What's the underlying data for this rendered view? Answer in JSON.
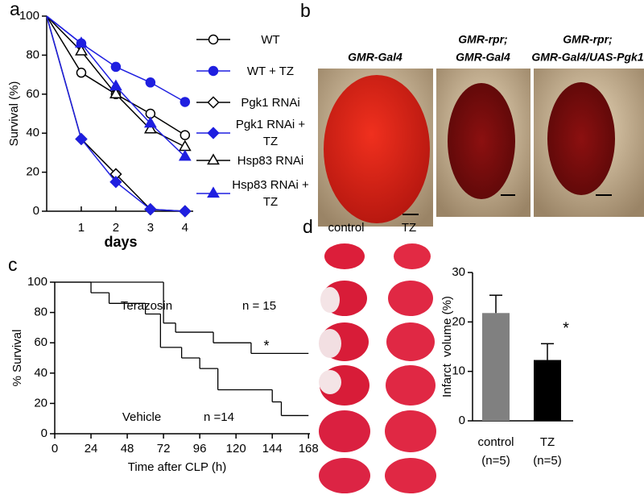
{
  "panels": [
    "a",
    "b",
    "c",
    "d"
  ],
  "eye_images": {
    "labels": [
      [
        "GMR-Gal4"
      ],
      [
        "GMR-rpr;",
        "GMR-Gal4"
      ],
      [
        "GMR-rpr;",
        "GMR-Gal4/UAS-Pgk1"
      ]
    ]
  },
  "brain_images": {
    "headers": [
      "control",
      "TZ"
    ]
  },
  "chart_data": [
    {
      "type": "line",
      "xlabel": "days",
      "ylabel": "Survival (%)",
      "x": [
        0,
        1,
        2,
        3,
        4
      ],
      "xlim": [
        0,
        4.4
      ],
      "xticks": [
        1,
        2,
        3,
        4
      ],
      "ylim": [
        0,
        100
      ],
      "yticks": [
        0,
        20,
        40,
        60,
        80,
        100
      ],
      "series": [
        {
          "name": "WT",
          "color": "#000000",
          "marker": "circle",
          "filled": false,
          "values": [
            100,
            71,
            60,
            50,
            39
          ]
        },
        {
          "name": "WT + TZ",
          "color": "#1f1fe0",
          "marker": "circle",
          "filled": true,
          "values": [
            100,
            86,
            74,
            66,
            56
          ]
        },
        {
          "name": "Pgk1 RNAi",
          "color": "#000000",
          "marker": "diamond",
          "filled": false,
          "values": [
            100,
            37,
            19,
            1,
            0
          ]
        },
        {
          "name": "Pgk1 RNAi + TZ",
          "color": "#1f1fe0",
          "marker": "diamond",
          "filled": true,
          "values": [
            100,
            37,
            15,
            1,
            0
          ]
        },
        {
          "name": "Hsp83 RNAi",
          "color": "#000000",
          "marker": "triangle",
          "filled": false,
          "values": [
            100,
            82,
            60,
            42,
            33
          ]
        },
        {
          "name": "Hsp83 RNAi + TZ",
          "color": "#1f1fe0",
          "marker": "triangle",
          "filled": true,
          "values": [
            100,
            86,
            64,
            45,
            28
          ]
        }
      ]
    },
    {
      "type": "step",
      "xlabel": "Time after CLP (h)",
      "ylabel": "% Survival",
      "xlim": [
        0,
        170
      ],
      "xticks": [
        0,
        24,
        48,
        72,
        96,
        120,
        144,
        168
      ],
      "ylim": [
        0,
        100
      ],
      "yticks": [
        0,
        20,
        40,
        60,
        80,
        100
      ],
      "annotation": "*",
      "series": [
        {
          "name": "Terazosin",
          "n_label": "n = 15",
          "color": "#000000",
          "x": [
            0,
            72,
            80,
            105,
            130,
            168
          ],
          "values": [
            100,
            73,
            67,
            60,
            53,
            53
          ]
        },
        {
          "name": "Vehicle",
          "n_label": "n =14",
          "color": "#000000",
          "x": [
            0,
            24,
            36,
            60,
            70,
            84,
            96,
            108,
            144,
            150,
            168
          ],
          "values": [
            100,
            93,
            86,
            79,
            57,
            50,
            43,
            29,
            21,
            12,
            12
          ]
        }
      ]
    },
    {
      "type": "bar",
      "ylabel": "Infarct  volume (%)",
      "categories": [
        "control",
        "TZ"
      ],
      "sublabels": [
        "(n=5)",
        "(n=5)"
      ],
      "values": [
        21.8,
        12.3
      ],
      "errors": [
        3.6,
        3.3
      ],
      "colors": [
        "#808080",
        "#000000"
      ],
      "ylim": [
        0,
        30
      ],
      "yticks": [
        0,
        10,
        20,
        30
      ],
      "annotation": "*"
    }
  ]
}
